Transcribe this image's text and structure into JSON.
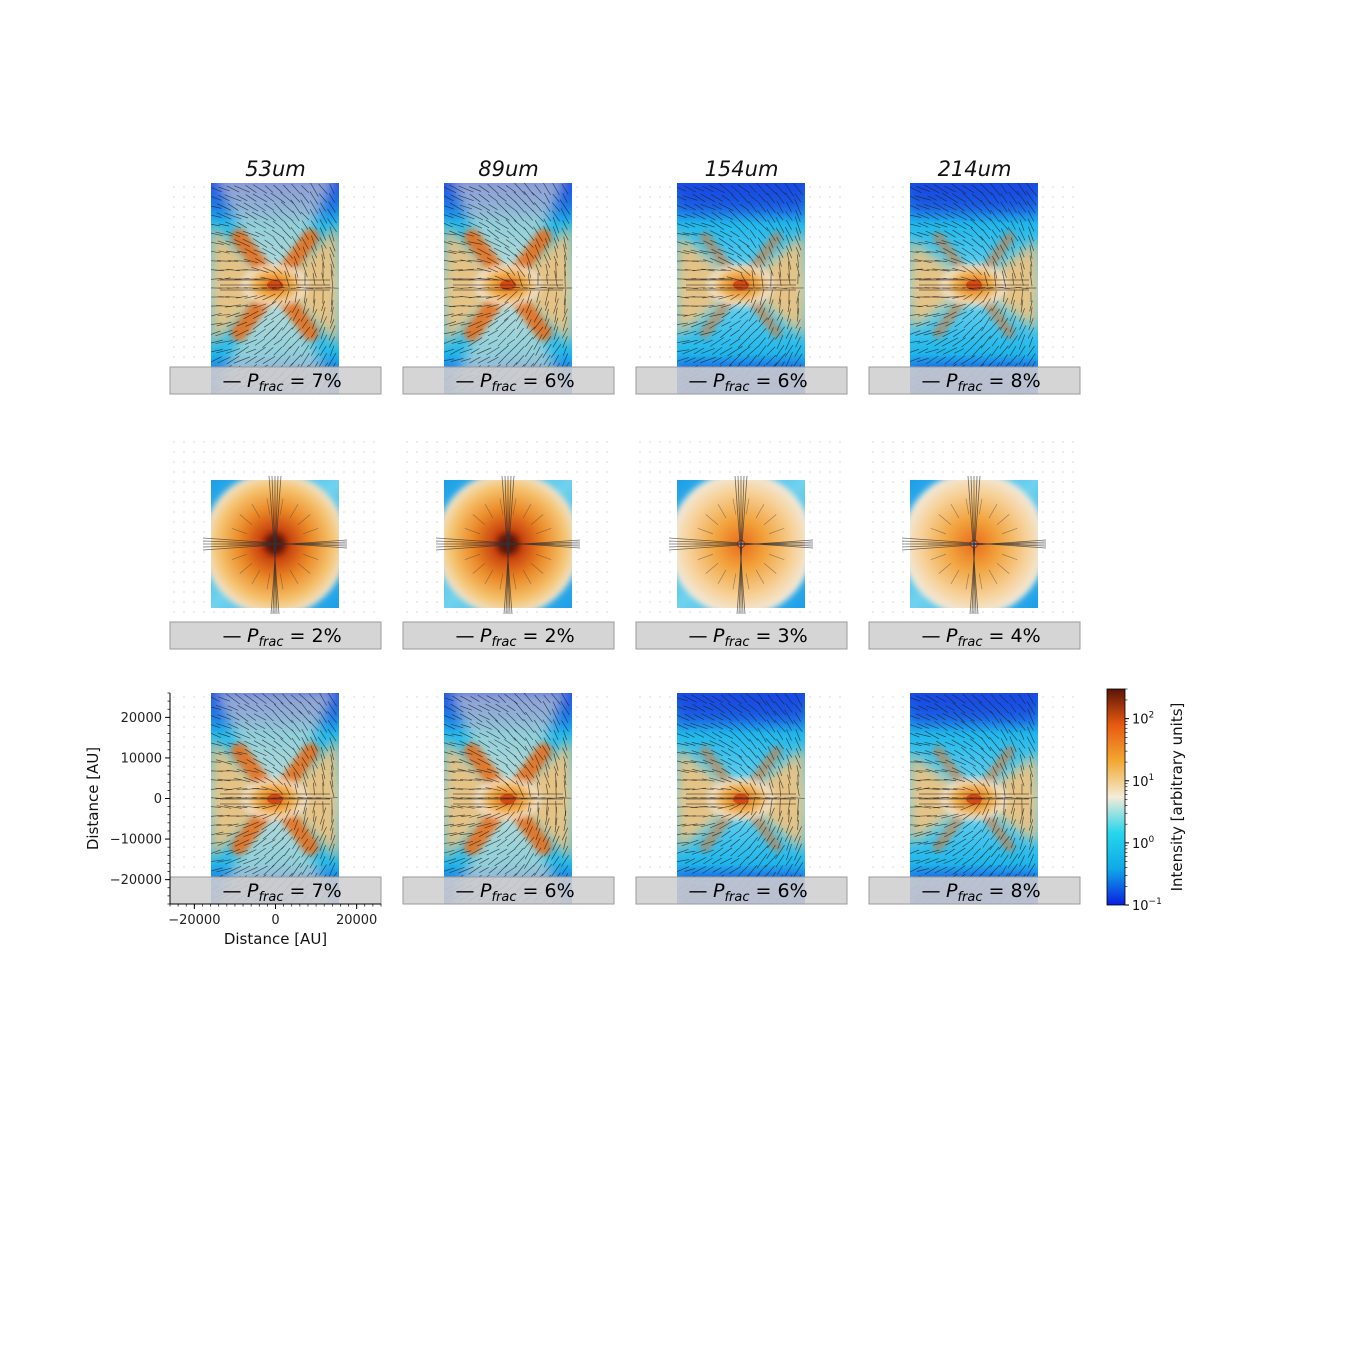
{
  "chart_data": {
    "type": "heatmap",
    "layout": {
      "rows": 3,
      "cols": 4
    },
    "wavelengths": [
      "53um",
      "89um",
      "154um",
      "214um"
    ],
    "panels": [
      {
        "row": 0,
        "col": 0,
        "pfrac": "7%",
        "morphology": "hourglass"
      },
      {
        "row": 0,
        "col": 1,
        "pfrac": "6%",
        "morphology": "hourglass"
      },
      {
        "row": 0,
        "col": 2,
        "pfrac": "6%",
        "morphology": "hourglass"
      },
      {
        "row": 0,
        "col": 3,
        "pfrac": "8%",
        "morphology": "hourglass"
      },
      {
        "row": 1,
        "col": 0,
        "pfrac": "2%",
        "morphology": "compact"
      },
      {
        "row": 1,
        "col": 1,
        "pfrac": "2%",
        "morphology": "compact"
      },
      {
        "row": 1,
        "col": 2,
        "pfrac": "3%",
        "morphology": "compact"
      },
      {
        "row": 1,
        "col": 3,
        "pfrac": "4%",
        "morphology": "compact"
      },
      {
        "row": 2,
        "col": 0,
        "pfrac": "7%",
        "morphology": "hourglass"
      },
      {
        "row": 2,
        "col": 1,
        "pfrac": "6%",
        "morphology": "hourglass"
      },
      {
        "row": 2,
        "col": 2,
        "pfrac": "6%",
        "morphology": "hourglass"
      },
      {
        "row": 2,
        "col": 3,
        "pfrac": "8%",
        "morphology": "hourglass"
      }
    ],
    "legend_symbol": "—",
    "legend_label_main": "P",
    "legend_label_sub": "frac",
    "legend_label_eq": " = ",
    "xlabel": "Distance [AU]",
    "ylabel": "Distance [AU]",
    "xlim": [
      -26000,
      26000
    ],
    "ylim": [
      -26000,
      26000
    ],
    "xticks": [
      -20000,
      0,
      20000
    ],
    "xtick_labels": [
      "−20000",
      "0",
      "20000"
    ],
    "yticks": [
      20000,
      10000,
      0,
      -10000,
      -20000
    ],
    "ytick_labels": [
      "20000",
      "10000",
      "0",
      "−10000",
      "−20000"
    ],
    "colorbar": {
      "label": "Intensity [arbitrary units]",
      "scale": "log",
      "range": [
        0.1,
        300
      ],
      "ticks": [
        {
          "value": 100,
          "base": "10",
          "exp": "2"
        },
        {
          "value": 10,
          "base": "10",
          "exp": "1"
        },
        {
          "value": 1,
          "base": "10",
          "exp": "0"
        },
        {
          "value": 0.1,
          "base": "10",
          "exp": "−1"
        }
      ],
      "colors": [
        "#0a1fe0",
        "#10a8e8",
        "#25d6ec",
        "#f5ecd8",
        "#f2a830",
        "#e85a10",
        "#5a1408"
      ]
    }
  }
}
